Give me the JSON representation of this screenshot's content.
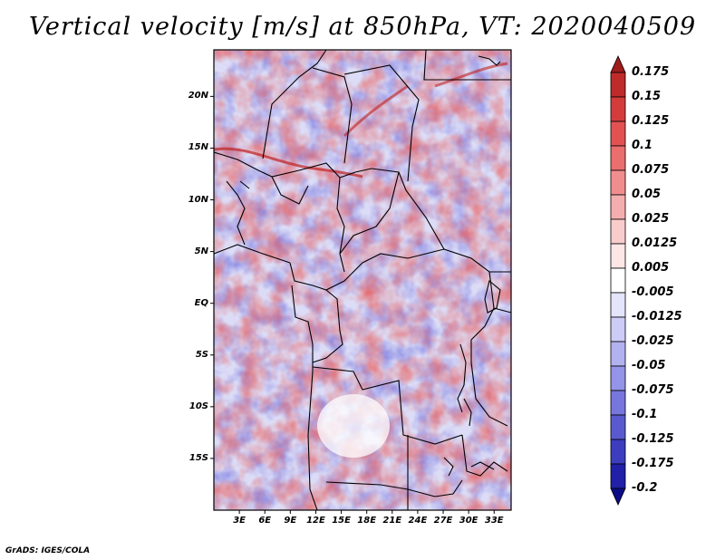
{
  "title": "Vertical velocity [m/s] at 850hPa, VT: 2020040509",
  "footer": "GrADS: IGES/COLA",
  "map": {
    "region": "Central Africa",
    "lat_range": [
      -20,
      24.5
    ],
    "lon_range": [
      0,
      35
    ],
    "lat_ticks": [
      "20N",
      "15N",
      "10N",
      "5N",
      "EQ",
      "5S",
      "10S",
      "15S"
    ],
    "lon_ticks": [
      "3E",
      "6E",
      "9E",
      "12E",
      "15E",
      "18E",
      "21E",
      "24E",
      "27E",
      "30E",
      "33E"
    ]
  },
  "colorbar": {
    "labels": [
      "0.175",
      "0.15",
      "0.125",
      "0.1",
      "0.075",
      "0.05",
      "0.025",
      "0.0125",
      "0.005",
      "-0.005",
      "-0.0125",
      "-0.025",
      "-0.05",
      "-0.075",
      "-0.1",
      "-0.125",
      "-0.175",
      "-0.2"
    ],
    "colors": [
      "#a01c1c",
      "#bf2a2a",
      "#d43c3c",
      "#e25252",
      "#eb6e6e",
      "#f08e8e",
      "#f5aeae",
      "#f9cccc",
      "#fce6e6",
      "#ffffff",
      "#e4e4fb",
      "#ccccf6",
      "#b2b2f0",
      "#9494e8",
      "#7676dc",
      "#5a5ad0",
      "#3d3dc0",
      "#2020a8",
      "#0c0c88"
    ]
  }
}
